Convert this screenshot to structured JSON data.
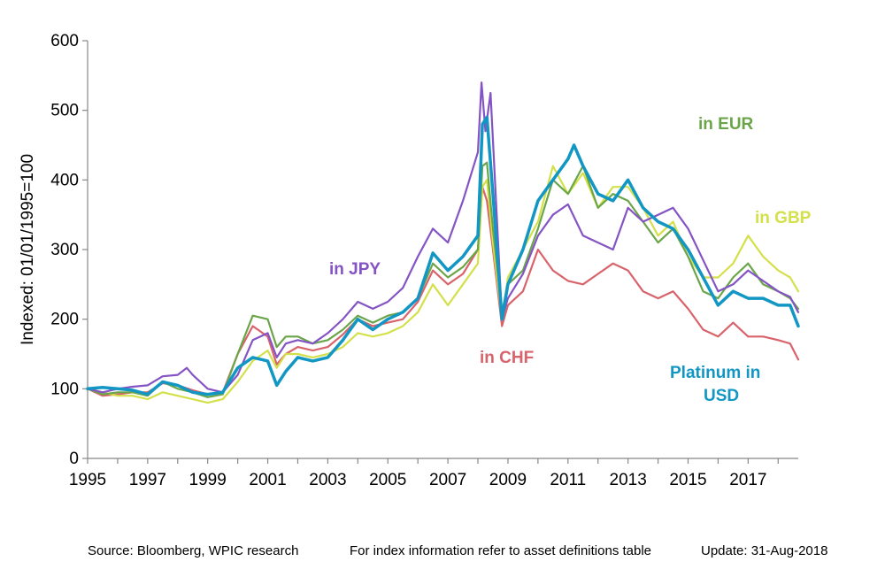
{
  "chart_data": {
    "type": "line",
    "ylabel": "Indexed: 01/01/1995=100",
    "ylim": [
      0,
      600
    ],
    "y_ticks": [
      "0",
      "100",
      "200",
      "300",
      "400",
      "500",
      "600"
    ],
    "xlim": [
      1995,
      2018.67
    ],
    "x_ticks": [
      "1995",
      "1997",
      "1999",
      "2001",
      "2003",
      "2005",
      "2007",
      "2009",
      "2011",
      "2013",
      "2015",
      "2017"
    ],
    "grid": false,
    "series": [
      {
        "name": "in CHF",
        "color": "#d9636b",
        "x": [
          1995.0,
          1995.5,
          1996.0,
          1996.5,
          1997.0,
          1997.5,
          1998.0,
          1998.5,
          1999.0,
          1999.5,
          2000.0,
          2000.5,
          2001.0,
          2001.3,
          2001.6,
          2002.0,
          2002.5,
          2003.0,
          2003.5,
          2004.0,
          2004.5,
          2005.0,
          2005.5,
          2006.0,
          2006.5,
          2007.0,
          2007.5,
          2008.0,
          2008.15,
          2008.3,
          2008.5,
          2008.8,
          2009.0,
          2009.5,
          2010.0,
          2010.5,
          2011.0,
          2011.5,
          2012.0,
          2012.5,
          2013.0,
          2013.5,
          2014.0,
          2014.5,
          2015.0,
          2015.5,
          2016.0,
          2016.5,
          2017.0,
          2017.5,
          2018.0,
          2018.4,
          2018.67
        ],
        "values": [
          100,
          90,
          92,
          95,
          95,
          108,
          105,
          98,
          92,
          95,
          150,
          190,
          175,
          135,
          150,
          160,
          155,
          160,
          178,
          200,
          190,
          195,
          200,
          225,
          270,
          250,
          265,
          300,
          390,
          370,
          300,
          190,
          220,
          240,
          300,
          270,
          255,
          250,
          265,
          280,
          270,
          240,
          230,
          240,
          215,
          185,
          175,
          195,
          175,
          175,
          170,
          165,
          142
        ]
      },
      {
        "name": "in GBP",
        "color": "#d4e04a",
        "x": [
          1995.0,
          1995.5,
          1996.0,
          1996.5,
          1997.0,
          1997.5,
          1998.0,
          1998.5,
          1999.0,
          1999.5,
          2000.0,
          2000.5,
          2001.0,
          2001.3,
          2001.6,
          2002.0,
          2002.5,
          2003.0,
          2003.5,
          2004.0,
          2004.5,
          2005.0,
          2005.5,
          2006.0,
          2006.5,
          2007.0,
          2007.5,
          2008.0,
          2008.15,
          2008.3,
          2008.5,
          2008.8,
          2009.0,
          2009.5,
          2010.0,
          2010.5,
          2011.0,
          2011.5,
          2012.0,
          2012.5,
          2013.0,
          2013.5,
          2014.0,
          2014.5,
          2015.0,
          2015.5,
          2016.0,
          2016.5,
          2017.0,
          2017.5,
          2018.0,
          2018.4,
          2018.67
        ],
        "values": [
          100,
          95,
          90,
          90,
          85,
          95,
          90,
          85,
          80,
          85,
          110,
          140,
          155,
          130,
          150,
          150,
          145,
          150,
          160,
          180,
          175,
          180,
          190,
          210,
          250,
          220,
          250,
          280,
          390,
          400,
          310,
          200,
          260,
          300,
          340,
          420,
          380,
          410,
          360,
          390,
          390,
          360,
          320,
          340,
          290,
          260,
          260,
          280,
          320,
          290,
          270,
          260,
          240
        ]
      },
      {
        "name": "in EUR",
        "color": "#6ba54a",
        "x": [
          1995.0,
          1995.5,
          1996.0,
          1996.5,
          1997.0,
          1997.5,
          1998.0,
          1998.5,
          1999.0,
          1999.5,
          2000.0,
          2000.5,
          2001.0,
          2001.3,
          2001.6,
          2002.0,
          2002.5,
          2003.0,
          2003.5,
          2004.0,
          2004.5,
          2005.0,
          2005.5,
          2006.0,
          2006.5,
          2007.0,
          2007.5,
          2008.0,
          2008.15,
          2008.3,
          2008.5,
          2008.8,
          2009.0,
          2009.5,
          2010.0,
          2010.5,
          2011.0,
          2011.5,
          2012.0,
          2012.5,
          2013.0,
          2013.5,
          2014.0,
          2014.5,
          2015.0,
          2015.5,
          2016.0,
          2016.5,
          2017.0,
          2017.5,
          2018.0,
          2018.4,
          2018.67
        ],
        "values": [
          100,
          92,
          95,
          95,
          90,
          110,
          100,
          95,
          88,
          92,
          150,
          205,
          200,
          160,
          175,
          175,
          165,
          170,
          185,
          205,
          195,
          205,
          210,
          230,
          280,
          260,
          275,
          300,
          420,
          425,
          330,
          210,
          250,
          270,
          330,
          400,
          380,
          420,
          360,
          380,
          370,
          340,
          310,
          330,
          290,
          240,
          230,
          260,
          280,
          250,
          240,
          230,
          215
        ]
      },
      {
        "name": "in JPY",
        "color": "#8554c4",
        "x": [
          1995.0,
          1995.5,
          1996.0,
          1996.5,
          1997.0,
          1997.5,
          1998.0,
          1998.3,
          1998.5,
          1999.0,
          1999.5,
          2000.0,
          2000.5,
          2001.0,
          2001.3,
          2001.6,
          2002.0,
          2002.5,
          2003.0,
          2003.5,
          2004.0,
          2004.5,
          2005.0,
          2005.5,
          2006.0,
          2006.5,
          2007.0,
          2007.5,
          2008.0,
          2008.12,
          2008.25,
          2008.42,
          2008.8,
          2009.0,
          2009.5,
          2010.0,
          2010.5,
          2011.0,
          2011.5,
          2012.0,
          2012.5,
          2013.0,
          2013.5,
          2014.0,
          2014.5,
          2015.0,
          2015.5,
          2016.0,
          2016.5,
          2017.0,
          2017.5,
          2018.0,
          2018.4,
          2018.67
        ],
        "values": [
          100,
          95,
          100,
          103,
          105,
          118,
          120,
          130,
          120,
          100,
          95,
          120,
          170,
          180,
          145,
          165,
          170,
          165,
          180,
          200,
          225,
          215,
          225,
          245,
          290,
          330,
          310,
          370,
          440,
          540,
          470,
          525,
          200,
          230,
          265,
          320,
          350,
          365,
          320,
          310,
          300,
          360,
          340,
          350,
          360,
          330,
          285,
          240,
          250,
          270,
          255,
          240,
          232,
          210
        ]
      },
      {
        "name": "Platinum in USD",
        "color": "#1296c4",
        "width": 3.5,
        "x": [
          1995.0,
          1995.5,
          1996.0,
          1996.5,
          1997.0,
          1997.5,
          1998.0,
          1998.5,
          1999.0,
          1999.5,
          2000.0,
          2000.5,
          2001.0,
          2001.3,
          2001.6,
          2002.0,
          2002.5,
          2003.0,
          2003.5,
          2004.0,
          2004.5,
          2005.0,
          2005.5,
          2006.0,
          2006.5,
          2007.0,
          2007.5,
          2008.0,
          2008.15,
          2008.3,
          2008.5,
          2008.8,
          2009.0,
          2009.5,
          2010.0,
          2010.5,
          2011.0,
          2011.2,
          2011.5,
          2012.0,
          2012.5,
          2013.0,
          2013.5,
          2014.0,
          2014.5,
          2015.0,
          2015.5,
          2016.0,
          2016.5,
          2017.0,
          2017.5,
          2018.0,
          2018.4,
          2018.67
        ],
        "values": [
          100,
          102,
          100,
          98,
          92,
          110,
          105,
          95,
          92,
          95,
          130,
          145,
          140,
          105,
          125,
          145,
          140,
          145,
          170,
          200,
          185,
          200,
          210,
          230,
          295,
          270,
          290,
          320,
          480,
          490,
          380,
          200,
          250,
          300,
          370,
          400,
          430,
          450,
          420,
          380,
          370,
          400,
          360,
          340,
          330,
          300,
          260,
          220,
          240,
          230,
          230,
          220,
          220,
          190
        ]
      }
    ],
    "annotations": [
      {
        "text": "in JPY",
        "series": "in JPY"
      },
      {
        "text": "in CHF",
        "series": "in CHF"
      },
      {
        "text": "in EUR",
        "series": "in EUR"
      },
      {
        "text": "in GBP",
        "series": "in GBP"
      },
      {
        "text": "Platinum in",
        "series": "Platinum in USD"
      },
      {
        "text": "USD",
        "series": "Platinum in USD"
      }
    ]
  },
  "footer": {
    "source": "Source: Bloomberg, WPIC research",
    "index_note": "For index information refer to asset definitions table",
    "update": "Update: 31-Aug-2018"
  }
}
